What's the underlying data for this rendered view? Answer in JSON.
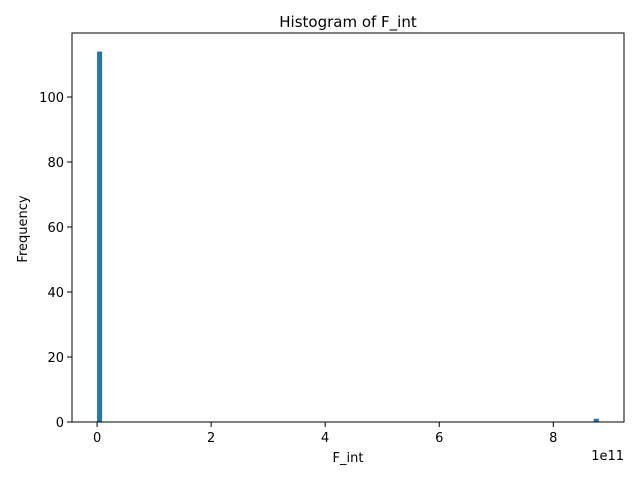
{
  "chart_data": {
    "type": "bar",
    "title": "Histogram of F_int",
    "xlabel": "F_int",
    "ylabel": "Frequency",
    "x_offset_label": "1e11",
    "xlim": [
      -0.44,
      9.24
    ],
    "ylim": [
      0,
      119.7
    ],
    "x_ticks": [
      0,
      2,
      4,
      6,
      8
    ],
    "y_ticks": [
      0,
      20,
      40,
      60,
      80,
      100
    ],
    "bin_width": 0.088,
    "bars": [
      {
        "x": 0.0,
        "count": 114
      },
      {
        "x": 8.71,
        "count": 1
      }
    ],
    "bar_color": "#1f77b4",
    "grid": false,
    "legend": "none"
  }
}
